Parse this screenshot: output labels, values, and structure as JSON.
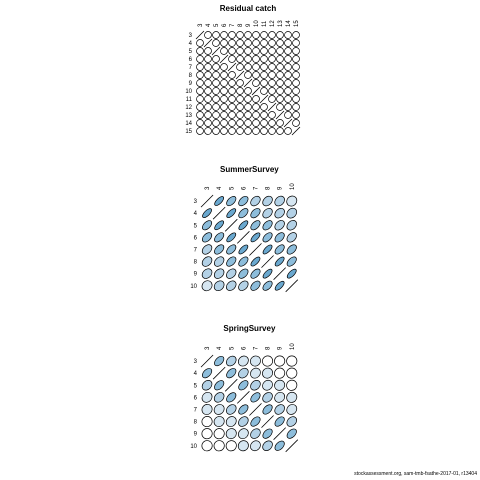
{
  "chart_data": [
    {
      "type": "heatmap",
      "title": "Residual catch",
      "labels": [
        "3",
        "4",
        "5",
        "6",
        "7",
        "8",
        "9",
        "10",
        "11",
        "12",
        "13",
        "14",
        "15"
      ],
      "correlations": [
        [
          1,
          0.05,
          0.04,
          0.03,
          0.02,
          0.02,
          0.03,
          0.02,
          0.03,
          0.04,
          0.02,
          0.03,
          0.04
        ],
        [
          0.05,
          1,
          0.05,
          0.04,
          0.03,
          0.02,
          0.03,
          0.04,
          0.03,
          0.03,
          0.04,
          0.02,
          0.03
        ],
        [
          0.04,
          0.05,
          1,
          0.05,
          0.04,
          0.03,
          0.02,
          0.03,
          0.04,
          0.03,
          0.03,
          0.04,
          0.02
        ],
        [
          0.03,
          0.04,
          0.05,
          1,
          0.05,
          0.04,
          0.03,
          0.02,
          0.03,
          0.04,
          0.03,
          0.03,
          0.04
        ],
        [
          0.02,
          0.03,
          0.04,
          0.05,
          1,
          0.05,
          0.04,
          0.03,
          0.02,
          0.03,
          0.04,
          0.03,
          0.03
        ],
        [
          0.02,
          0.02,
          0.03,
          0.04,
          0.05,
          1,
          0.05,
          0.04,
          0.03,
          0.02,
          0.03,
          0.04,
          0.03
        ],
        [
          0.03,
          0.03,
          0.02,
          0.03,
          0.04,
          0.05,
          1,
          0.05,
          0.04,
          0.03,
          0.02,
          0.03,
          0.04
        ],
        [
          0.02,
          0.04,
          0.03,
          0.02,
          0.03,
          0.04,
          0.05,
          1,
          0.05,
          0.04,
          0.03,
          0.02,
          0.03
        ],
        [
          0.03,
          0.03,
          0.04,
          0.03,
          0.02,
          0.03,
          0.04,
          0.05,
          1,
          0.05,
          0.04,
          0.03,
          0.02
        ],
        [
          0.04,
          0.03,
          0.03,
          0.04,
          0.03,
          0.02,
          0.03,
          0.04,
          0.05,
          1,
          0.05,
          0.04,
          0.03
        ],
        [
          0.02,
          0.04,
          0.03,
          0.03,
          0.04,
          0.03,
          0.02,
          0.03,
          0.04,
          0.05,
          1,
          0.05,
          0.04
        ],
        [
          0.03,
          0.02,
          0.04,
          0.03,
          0.03,
          0.04,
          0.03,
          0.02,
          0.03,
          0.04,
          0.05,
          1,
          0.05
        ],
        [
          0.04,
          0.03,
          0.02,
          0.04,
          0.03,
          0.03,
          0.04,
          0.03,
          0.02,
          0.03,
          0.04,
          0.05,
          1
        ]
      ]
    },
    {
      "type": "heatmap",
      "title": "SummerSurvey",
      "labels": [
        "3",
        "4",
        "5",
        "6",
        "7",
        "8",
        "9",
        "10"
      ],
      "correlations": [
        [
          1,
          0.75,
          0.6,
          0.55,
          0.45,
          0.4,
          0.35,
          0.15
        ],
        [
          0.75,
          1,
          0.75,
          0.6,
          0.55,
          0.45,
          0.4,
          0.3
        ],
        [
          0.6,
          0.75,
          1,
          0.75,
          0.6,
          0.55,
          0.45,
          0.4
        ],
        [
          0.55,
          0.6,
          0.75,
          1,
          0.75,
          0.6,
          0.55,
          0.45
        ],
        [
          0.45,
          0.55,
          0.6,
          0.75,
          1,
          0.75,
          0.6,
          0.55
        ],
        [
          0.4,
          0.45,
          0.55,
          0.6,
          0.75,
          1,
          0.75,
          0.6
        ],
        [
          0.35,
          0.4,
          0.45,
          0.55,
          0.6,
          0.75,
          1,
          0.75
        ],
        [
          0.15,
          0.3,
          0.4,
          0.45,
          0.55,
          0.6,
          0.75,
          1
        ]
      ]
    },
    {
      "type": "heatmap",
      "title": "SpringSurvey",
      "labels": [
        "3",
        "4",
        "5",
        "6",
        "7",
        "8",
        "9",
        "10"
      ],
      "correlations": [
        [
          1,
          0.55,
          0.35,
          0.2,
          0.1,
          0.05,
          0.03,
          0.02
        ],
        [
          0.55,
          1,
          0.55,
          0.35,
          0.2,
          0.1,
          0.05,
          0.03
        ],
        [
          0.35,
          0.55,
          1,
          0.55,
          0.35,
          0.2,
          0.1,
          0.05
        ],
        [
          0.2,
          0.35,
          0.55,
          1,
          0.55,
          0.35,
          0.2,
          0.1
        ],
        [
          0.1,
          0.2,
          0.35,
          0.55,
          1,
          0.55,
          0.35,
          0.2
        ],
        [
          0.05,
          0.1,
          0.2,
          0.35,
          0.55,
          1,
          0.55,
          0.35
        ],
        [
          0.03,
          0.05,
          0.1,
          0.2,
          0.35,
          0.55,
          1,
          0.55
        ],
        [
          0.02,
          0.03,
          0.05,
          0.1,
          0.2,
          0.35,
          0.55,
          1
        ]
      ]
    }
  ],
  "footer_text": "stockassessment.org, sam-tmb-fsathe-2017-01, r13404"
}
